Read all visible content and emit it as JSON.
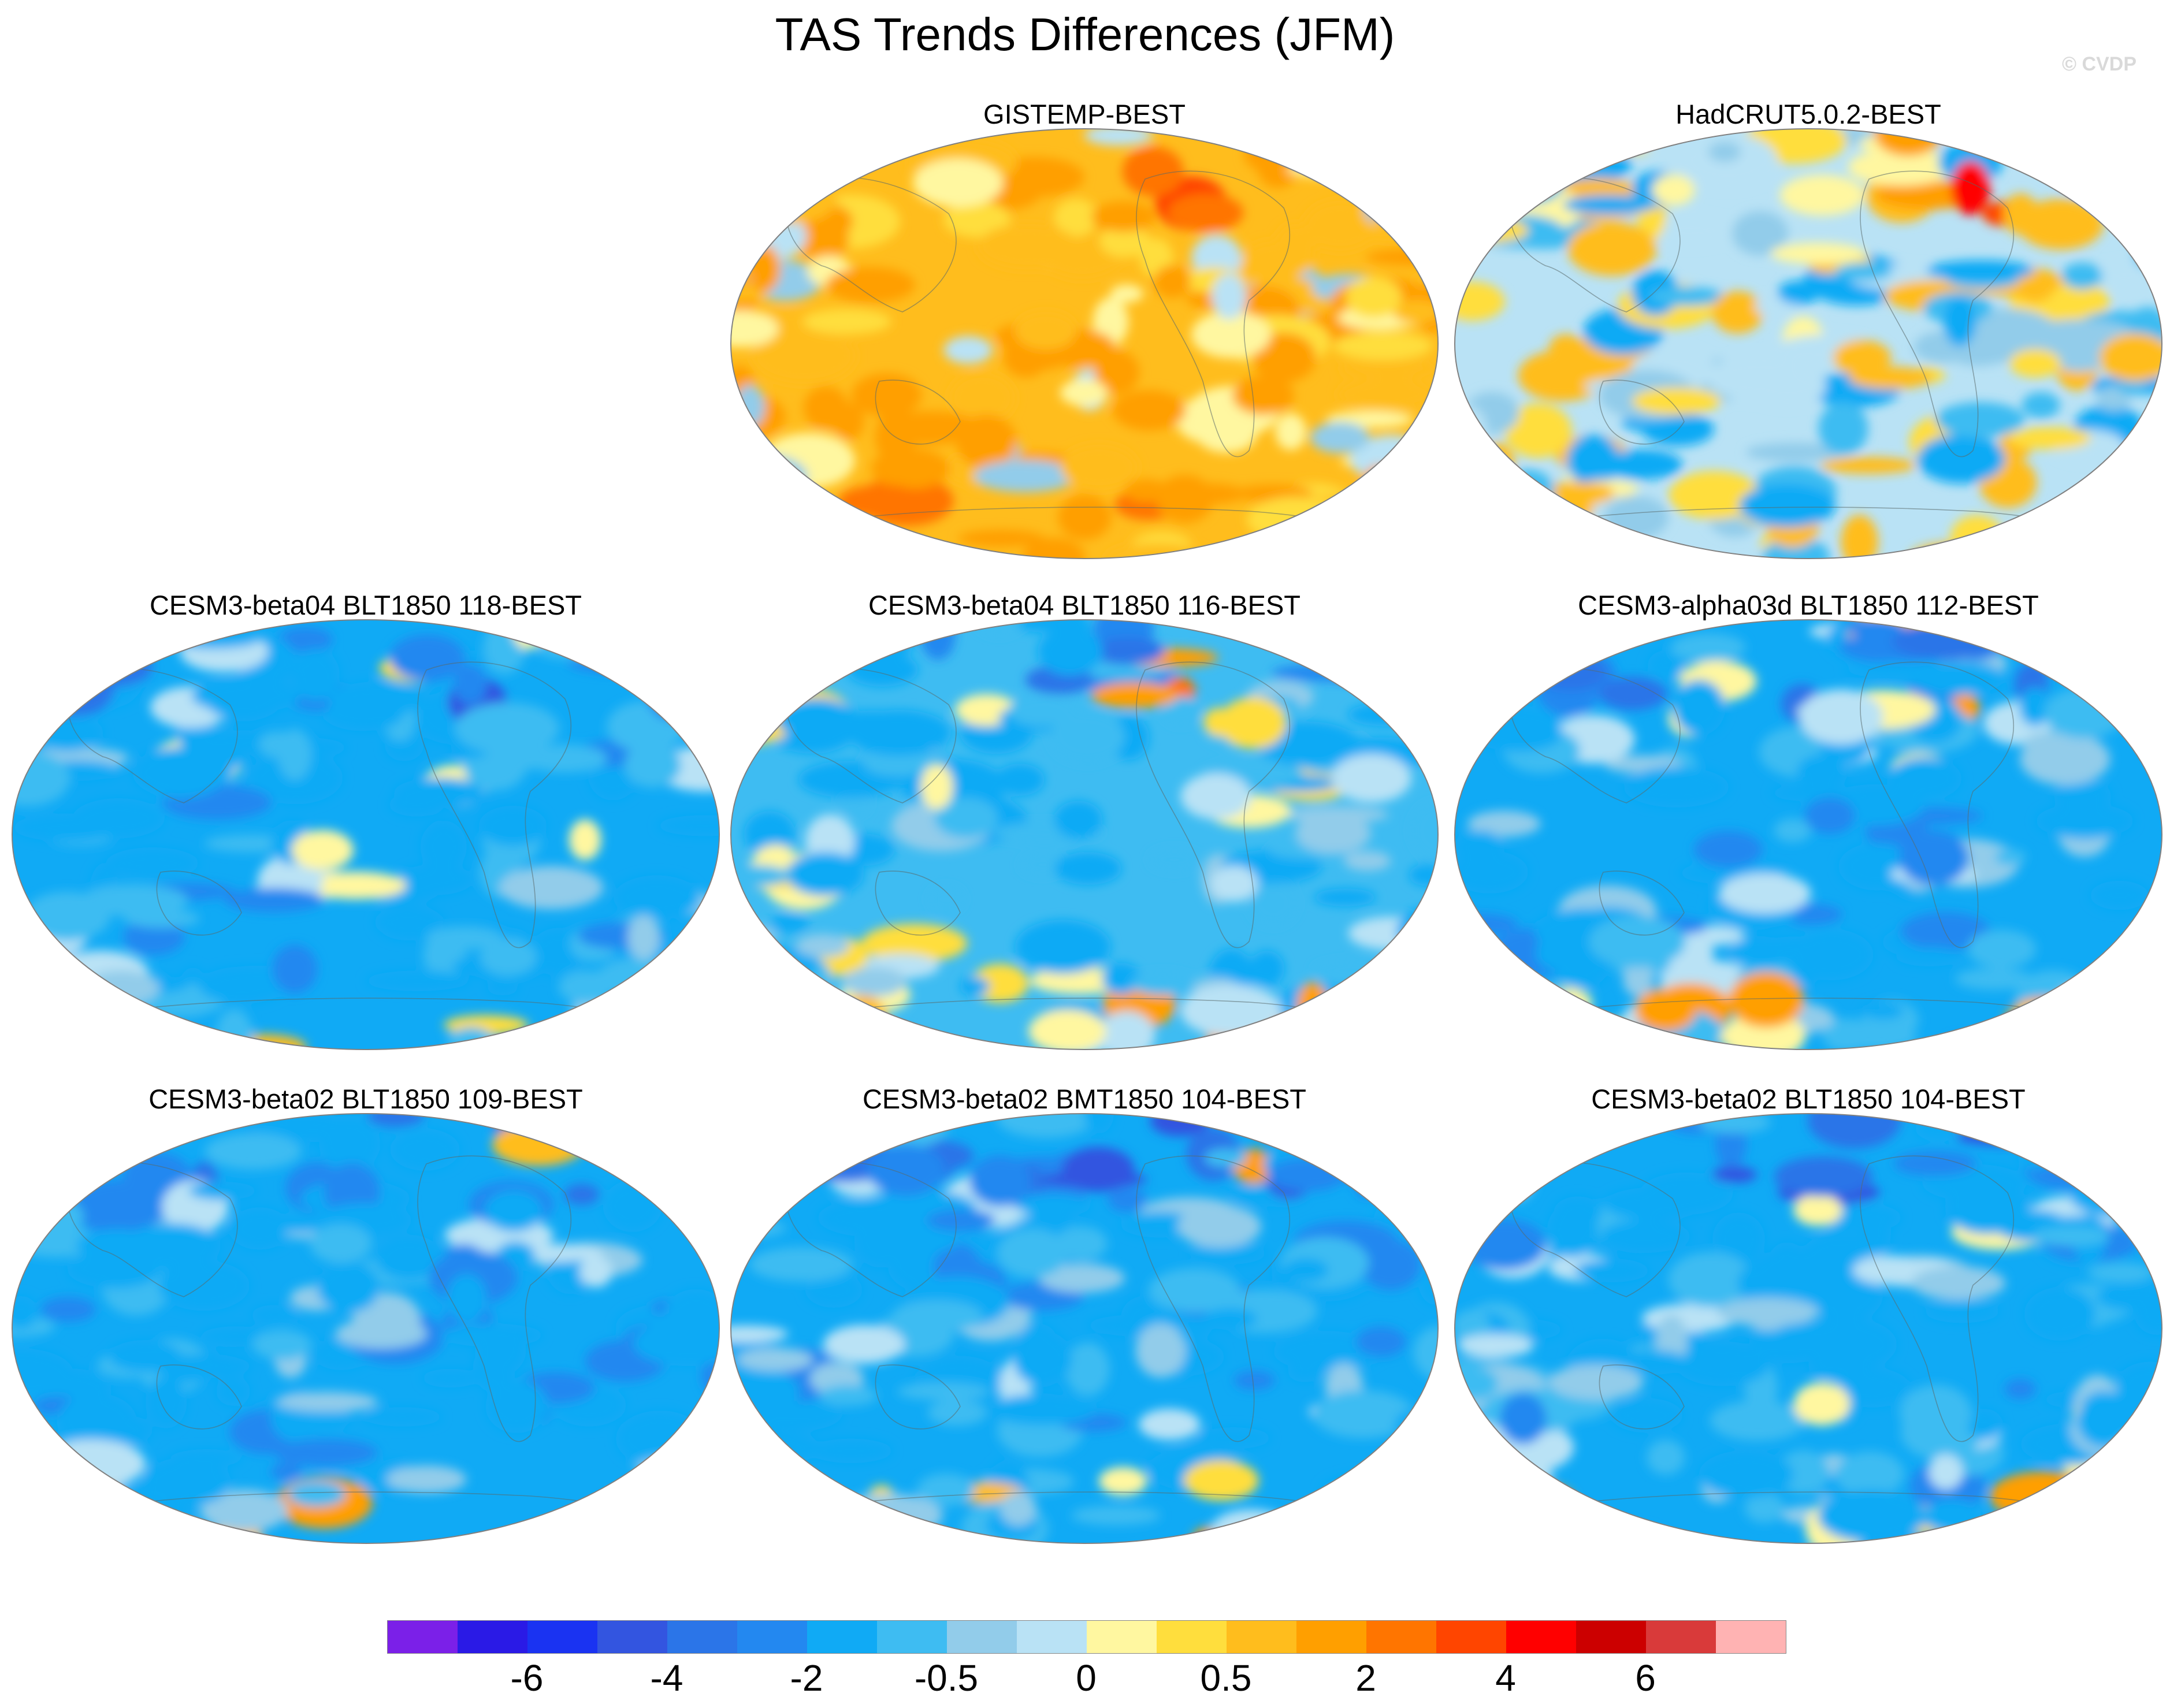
{
  "chart_data": {
    "type": "heatmap",
    "title": "TAS Trends Differences (JFM)",
    "credit": "© CVDP",
    "projection": "Winkel tripel (Pacific-centered)",
    "panels": [
      {
        "title": "GISTEMP-BEST",
        "bias": 0.7,
        "seed": 3
      },
      {
        "title": "HadCRUT5.0.2-BEST",
        "bias": -0.2,
        "seed": 7
      },
      {
        "title": "CESM3-beta04 BLT1850 118-BEST",
        "bias": -1.1,
        "seed": 11
      },
      {
        "title": "CESM3-beta04 BLT1850 116-BEST",
        "bias": -0.7,
        "seed": 19
      },
      {
        "title": "CESM3-alpha03d BLT1850 112-BEST",
        "bias": -1.0,
        "seed": 23
      },
      {
        "title": "CESM3-beta02 BLT1850 109-BEST",
        "bias": -1.3,
        "seed": 29
      },
      {
        "title": "CESM3-beta02 BMT1850 104-BEST",
        "bias": -1.2,
        "seed": 31
      },
      {
        "title": "CESM3-beta02 BLT1850 104-BEST",
        "bias": -1.1,
        "seed": 37
      }
    ],
    "colorbar": {
      "colors": [
        "#7b20e8",
        "#2a1ae6",
        "#1a33f2",
        "#3355e0",
        "#2b75e8",
        "#2388f0",
        "#10aaf5",
        "#3ebcf2",
        "#92ccea",
        "#b9e2f5",
        "#fff7a0",
        "#ffde3d",
        "#ffbd1d",
        "#ff9f00",
        "#ff7500",
        "#ff4500",
        "#ff0000",
        "#cc0000",
        "#d93a3a",
        "#ffb3b3"
      ],
      "labels": [
        "-6",
        "-4",
        "-2",
        "-0.5",
        "0",
        "0.5",
        "2",
        "4",
        "6"
      ],
      "label_box_index": [
        2,
        4,
        6,
        8,
        10,
        12,
        14,
        16,
        18
      ]
    }
  }
}
